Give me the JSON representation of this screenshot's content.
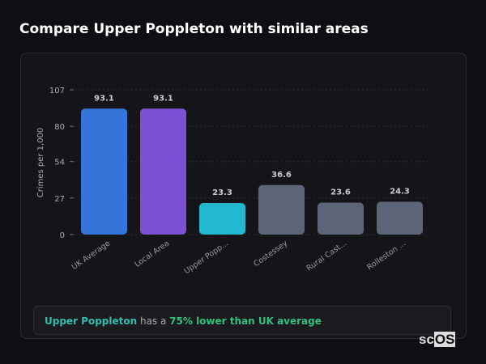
{
  "title": "Compare Upper Poppleton with similar areas",
  "chart_data": {
    "type": "bar",
    "ylabel": "Crimes per 1,000",
    "ylim": [
      0,
      107
    ],
    "yticks": [
      0,
      27,
      54,
      80,
      107
    ],
    "grid": true,
    "categories": [
      "UK Average",
      "Local Area",
      "Upper Popp...",
      "Costessey",
      "Rural Cast...",
      "Rolleston ..."
    ],
    "values": [
      93.1,
      93.1,
      23.3,
      36.6,
      23.6,
      24.3
    ],
    "value_labels": [
      "93.1",
      "93.1",
      "23.3",
      "36.6",
      "23.6",
      "24.3"
    ],
    "colors": [
      "#3574d8",
      "#7b52d6",
      "#22b8cf",
      "#5b6577",
      "#5b6577",
      "#5b6577"
    ]
  },
  "note": {
    "place": "Upper Poppleton",
    "mid": " has a ",
    "highlight": "75% lower than UK average"
  },
  "logo": "scOS"
}
